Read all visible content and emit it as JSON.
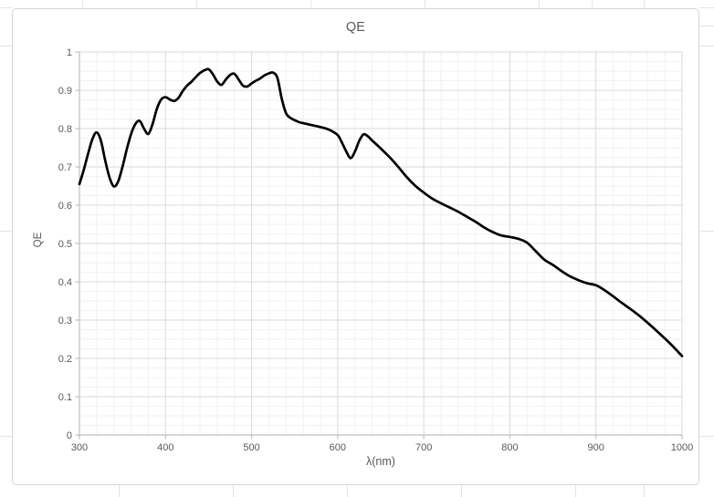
{
  "chart_frame": {
    "background": "#ffffff",
    "border_color": "#d6d6d6",
    "text_color": "#595959",
    "major_grid_color": "#d9d9d9",
    "minor_grid_color": "#f2f2f2",
    "axis_color": "#bfbfbf"
  },
  "chart_data": {
    "type": "line",
    "title": "QE",
    "xlabel": "λ(nm)",
    "ylabel": "QE",
    "xlim": [
      300,
      1000
    ],
    "ylim": [
      0,
      1
    ],
    "x_major_ticks": [
      300,
      400,
      500,
      600,
      700,
      800,
      900,
      1000
    ],
    "x_tick_labels": [
      "300",
      "400",
      "500",
      "600",
      "700",
      "800",
      "900",
      "1000"
    ],
    "y_major_ticks": [
      0,
      0.1,
      0.2,
      0.3,
      0.4,
      0.5,
      0.6,
      0.7,
      0.8,
      0.9,
      1
    ],
    "y_tick_labels": [
      "0",
      "0.1",
      "0.2",
      "0.3",
      "0.4",
      "0.5",
      "0.6",
      "0.7",
      "0.8",
      "0.9",
      "1"
    ],
    "x_minor_step": 20,
    "y_minor_step": 0.025,
    "grid": "major+minor",
    "legend": "none",
    "series": [
      {
        "name": "QE",
        "color": "#000000",
        "width": 2.7,
        "points": [
          [
            300,
            0.655
          ],
          [
            305,
            0.692
          ],
          [
            310,
            0.734
          ],
          [
            315,
            0.772
          ],
          [
            320,
            0.79
          ],
          [
            325,
            0.768
          ],
          [
            330,
            0.716
          ],
          [
            335,
            0.672
          ],
          [
            340,
            0.649
          ],
          [
            345,
            0.662
          ],
          [
            350,
            0.7
          ],
          [
            355,
            0.746
          ],
          [
            360,
            0.786
          ],
          [
            365,
            0.812
          ],
          [
            370,
            0.82
          ],
          [
            375,
            0.8
          ],
          [
            380,
            0.786
          ],
          [
            385,
            0.812
          ],
          [
            390,
            0.852
          ],
          [
            395,
            0.876
          ],
          [
            400,
            0.882
          ],
          [
            405,
            0.876
          ],
          [
            410,
            0.872
          ],
          [
            415,
            0.88
          ],
          [
            420,
            0.898
          ],
          [
            425,
            0.912
          ],
          [
            430,
            0.922
          ],
          [
            435,
            0.934
          ],
          [
            440,
            0.945
          ],
          [
            445,
            0.952
          ],
          [
            450,
            0.955
          ],
          [
            455,
            0.942
          ],
          [
            460,
            0.923
          ],
          [
            465,
            0.914
          ],
          [
            470,
            0.928
          ],
          [
            475,
            0.94
          ],
          [
            480,
            0.943
          ],
          [
            485,
            0.928
          ],
          [
            490,
            0.912
          ],
          [
            495,
            0.91
          ],
          [
            500,
            0.918
          ],
          [
            505,
            0.925
          ],
          [
            510,
            0.931
          ],
          [
            515,
            0.939
          ],
          [
            520,
            0.944
          ],
          [
            525,
            0.946
          ],
          [
            530,
            0.932
          ],
          [
            535,
            0.878
          ],
          [
            540,
            0.84
          ],
          [
            545,
            0.828
          ],
          [
            550,
            0.822
          ],
          [
            555,
            0.817
          ],
          [
            560,
            0.814
          ],
          [
            570,
            0.809
          ],
          [
            580,
            0.804
          ],
          [
            590,
            0.797
          ],
          [
            600,
            0.783
          ],
          [
            605,
            0.763
          ],
          [
            610,
            0.74
          ],
          [
            615,
            0.723
          ],
          [
            620,
            0.74
          ],
          [
            625,
            0.768
          ],
          [
            630,
            0.785
          ],
          [
            635,
            0.78
          ],
          [
            640,
            0.769
          ],
          [
            650,
            0.748
          ],
          [
            660,
            0.726
          ],
          [
            670,
            0.701
          ],
          [
            680,
            0.674
          ],
          [
            690,
            0.651
          ],
          [
            700,
            0.633
          ],
          [
            710,
            0.617
          ],
          [
            720,
            0.605
          ],
          [
            730,
            0.594
          ],
          [
            740,
            0.583
          ],
          [
            750,
            0.57
          ],
          [
            760,
            0.557
          ],
          [
            770,
            0.542
          ],
          [
            780,
            0.53
          ],
          [
            790,
            0.521
          ],
          [
            800,
            0.517
          ],
          [
            810,
            0.512
          ],
          [
            820,
            0.502
          ],
          [
            830,
            0.48
          ],
          [
            840,
            0.458
          ],
          [
            850,
            0.444
          ],
          [
            860,
            0.428
          ],
          [
            870,
            0.414
          ],
          [
            880,
            0.404
          ],
          [
            890,
            0.396
          ],
          [
            900,
            0.391
          ],
          [
            910,
            0.378
          ],
          [
            920,
            0.362
          ],
          [
            930,
            0.345
          ],
          [
            940,
            0.329
          ],
          [
            950,
            0.312
          ],
          [
            960,
            0.293
          ],
          [
            970,
            0.273
          ],
          [
            980,
            0.252
          ],
          [
            990,
            0.23
          ],
          [
            1000,
            0.206
          ]
        ]
      }
    ]
  }
}
